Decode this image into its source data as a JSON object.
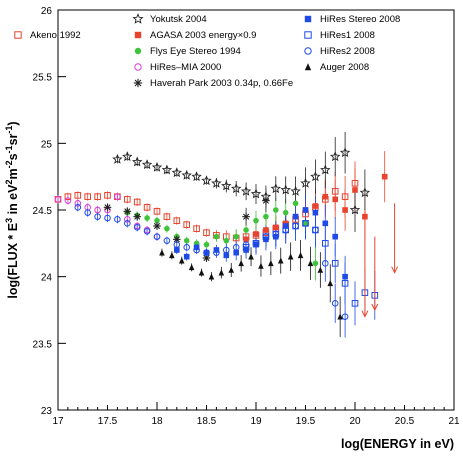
{
  "chart_data": {
    "type": "scatter",
    "xlabel": "log(ENERGY in eV)",
    "ylabel": "log(FLUX * E^3 in eV^2 m^-2 s^-1 sr^-1)",
    "xlim": [
      17,
      21
    ],
    "ylim": [
      23,
      26
    ],
    "xticks": [
      17,
      17.5,
      18,
      18.5,
      19,
      19.5,
      20,
      20.5,
      21
    ],
    "yticks": [
      23,
      23.5,
      24,
      24.5,
      25,
      25.5,
      26
    ],
    "grid": false,
    "legend_placement": "top",
    "series": [
      {
        "name": "Akeno 1992",
        "marker": "open-square",
        "color": "#e8432e",
        "x": [
          17.0,
          17.1,
          17.2,
          17.3,
          17.4,
          17.5,
          17.6,
          17.7,
          17.8,
          17.9,
          18.0,
          18.1,
          18.2,
          18.3,
          18.4,
          18.5,
          18.6,
          18.7,
          18.8,
          18.9,
          19.0,
          19.1,
          19.2,
          19.3,
          19.4,
          19.5,
          19.6,
          19.7,
          19.8,
          19.9,
          20.0
        ],
        "y": [
          24.58,
          24.6,
          24.61,
          24.6,
          24.6,
          24.61,
          24.6,
          24.58,
          24.56,
          24.52,
          24.49,
          24.45,
          24.42,
          24.39,
          24.36,
          24.33,
          24.31,
          24.3,
          24.29,
          24.3,
          24.31,
          24.33,
          24.36,
          24.39,
          24.43,
          24.47,
          24.52,
          24.58,
          24.64,
          24.6,
          24.7
        ]
      },
      {
        "name": "AGASA 2003  energy×0.9",
        "marker": "filled-square",
        "color": "#e8432e",
        "x": [
          18.9,
          19.0,
          19.1,
          19.2,
          19.3,
          19.4,
          19.5,
          19.6,
          19.7,
          19.8,
          19.9,
          20.0,
          20.1,
          20.3
        ],
        "y": [
          24.28,
          24.32,
          24.35,
          24.37,
          24.4,
          24.45,
          24.5,
          24.53,
          24.6,
          24.58,
          24.5,
          24.65,
          24.45,
          24.75
        ]
      },
      {
        "name": "Flys Eye Stereo 1994",
        "marker": "filled-circle",
        "color": "#3ec43a",
        "x": [
          17.7,
          17.8,
          17.9,
          18.0,
          18.1,
          18.2,
          18.3,
          18.4,
          18.5,
          18.6,
          18.7,
          18.8,
          18.9,
          19.0,
          19.1,
          19.2,
          19.3,
          19.4,
          19.5,
          19.6
        ],
        "y": [
          24.48,
          24.46,
          24.44,
          24.42,
          24.36,
          24.3,
          24.27,
          24.25,
          24.24,
          24.3,
          24.27,
          24.3,
          24.35,
          24.42,
          24.45,
          24.5,
          24.48,
          24.55,
          24.4,
          24.1
        ]
      },
      {
        "name": "HiRes–MIA 2000",
        "marker": "open-circle",
        "color": "#d63ed6",
        "x": [
          17.0,
          17.1,
          17.2,
          17.3,
          17.4,
          17.5,
          17.6,
          17.7,
          17.8,
          17.9,
          18.0
        ],
        "y": [
          24.58,
          24.57,
          24.55,
          24.52,
          24.5,
          24.5,
          24.6,
          24.43,
          24.38,
          24.35,
          24.3
        ]
      },
      {
        "name": "Haverah Park 2003 0.34p, 0.66Fe",
        "marker": "asterisk",
        "color": "#222222",
        "x": [
          17.5,
          17.7,
          17.8,
          18.0,
          18.2,
          18.5,
          18.9,
          19.1
        ],
        "y": [
          24.52,
          24.49,
          24.45,
          24.38,
          24.28,
          24.14,
          24.45,
          24.57
        ]
      },
      {
        "name": "Yokutsk 2004",
        "marker": "open-star",
        "color": "#222222",
        "x": [
          17.6,
          17.7,
          17.8,
          17.9,
          18.0,
          18.1,
          18.2,
          18.3,
          18.4,
          18.5,
          18.6,
          18.7,
          18.8,
          18.9,
          19.0,
          19.1,
          19.2,
          19.3,
          19.4,
          19.5,
          19.6,
          19.7,
          19.8,
          19.9,
          20.0,
          20.1
        ],
        "y": [
          24.88,
          24.9,
          24.86,
          24.84,
          24.82,
          24.8,
          24.78,
          24.76,
          24.75,
          24.72,
          24.7,
          24.68,
          24.66,
          24.64,
          24.62,
          24.6,
          24.66,
          24.65,
          24.64,
          24.7,
          24.75,
          24.8,
          24.9,
          24.93,
          24.5,
          24.63
        ]
      },
      {
        "name": "HiRes Stereo 2008",
        "marker": "filled-square",
        "color": "#1e4ae8",
        "x": [
          18.2,
          18.3,
          18.4,
          18.5,
          18.6,
          18.7,
          18.8,
          18.9,
          19.0,
          19.1,
          19.2,
          19.3,
          19.4,
          19.5,
          19.6,
          19.7,
          19.8,
          19.9
        ],
        "y": [
          24.2,
          24.15,
          24.22,
          24.18,
          24.2,
          24.16,
          24.18,
          24.2,
          24.24,
          24.28,
          24.3,
          24.38,
          24.45,
          24.5,
          24.48,
          24.4,
          24.3,
          24.0
        ]
      },
      {
        "name": "HiRes1 2008",
        "marker": "open-square",
        "color": "#1e4ae8",
        "x": [
          18.9,
          19.0,
          19.1,
          19.2,
          19.3,
          19.4,
          19.5,
          19.6,
          19.7,
          19.8,
          19.9,
          20.0,
          20.1,
          20.2
        ],
        "y": [
          24.22,
          24.25,
          24.3,
          24.32,
          24.35,
          24.38,
          24.4,
          24.35,
          24.25,
          24.1,
          23.95,
          23.8,
          23.88,
          23.86
        ]
      },
      {
        "name": "HiRes2 2008",
        "marker": "open-circle",
        "color": "#1e4ae8",
        "x": [
          17.2,
          17.3,
          17.4,
          17.5,
          17.6,
          17.7,
          17.8,
          17.9,
          18.0,
          18.1,
          18.2,
          18.3,
          18.4,
          18.5,
          18.6,
          18.7,
          18.8,
          18.9,
          19.0,
          19.1,
          19.2,
          19.3,
          19.4,
          19.5,
          19.6,
          19.7,
          19.8,
          19.9
        ],
        "y": [
          24.52,
          24.48,
          24.45,
          24.44,
          24.43,
          24.4,
          24.37,
          24.34,
          24.3,
          24.27,
          24.24,
          24.22,
          24.2,
          24.18,
          24.18,
          24.2,
          24.22,
          24.24,
          24.25,
          24.3,
          24.32,
          24.35,
          24.38,
          24.4,
          24.35,
          24.1,
          23.8,
          23.7
        ]
      },
      {
        "name": "Auger 2008",
        "marker": "filled-triangle",
        "color": "#111111",
        "x": [
          18.05,
          18.15,
          18.25,
          18.35,
          18.45,
          18.55,
          18.65,
          18.75,
          18.85,
          18.95,
          19.05,
          19.15,
          19.25,
          19.35,
          19.45,
          19.55,
          19.65,
          19.75,
          19.85
        ],
        "y": [
          24.18,
          24.16,
          24.12,
          24.07,
          24.03,
          24.0,
          24.03,
          24.05,
          24.1,
          24.15,
          24.08,
          24.1,
          24.12,
          24.15,
          24.16,
          24.1,
          24.05,
          23.95,
          23.7
        ]
      }
    ],
    "upper_limits": [
      {
        "x": 20.1,
        "y": 24.5,
        "to": 23.7,
        "color": "#e8432e"
      },
      {
        "x": 20.2,
        "y": 24.3,
        "to": 23.75,
        "color": "#e8432e"
      },
      {
        "x": 20.4,
        "y": 24.55,
        "to": 24.03,
        "color": "#e8432e"
      }
    ]
  }
}
